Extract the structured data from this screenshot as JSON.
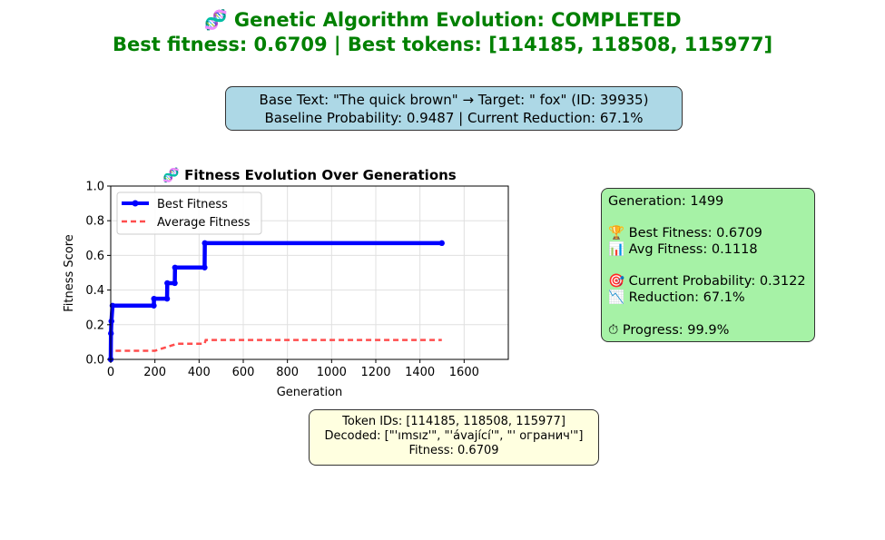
{
  "header": {
    "title_line1": "🧬 Genetic Algorithm Evolution: COMPLETED",
    "title_line2": "Best fitness: 0.6709 | Best tokens: [114185, 118508, 115977]"
  },
  "info_box": {
    "line1": "Base Text: \"The quick brown\"  →  Target: \" fox\" (ID: 39935)",
    "line2": "Baseline Probability: 0.9487  |  Current Reduction: 67.1%"
  },
  "stats_box": {
    "generation": "Generation: 1499",
    "best_fitness": "🏆 Best Fitness: 0.6709",
    "avg_fitness": "📊 Avg Fitness: 0.1118",
    "current_probability": "🎯 Current Probability: 0.3122",
    "reduction": "📉 Reduction: 67.1%",
    "progress": "⏱ Progress: 99.9%"
  },
  "token_box": {
    "token_ids": "Token IDs: [114185, 118508, 115977]",
    "decoded": "Decoded: [\"'ımsız'\", \"'ávající'\", \"' огранич'\"]",
    "fitness": "Fitness: 0.6709"
  },
  "colors": {
    "title": "#008000",
    "best_series": "#0000ff",
    "average_series": "#ff4d4d",
    "info_box": "#add8e6",
    "stats_box": "#a6f2a6",
    "token_box": "#ffffe0"
  },
  "chart_data": {
    "type": "line",
    "title": "🧬 Fitness Evolution Over Generations",
    "xlabel": "Generation",
    "ylabel": "Fitness Score",
    "xlim": [
      0,
      1800
    ],
    "ylim": [
      0,
      1
    ],
    "xticks": [
      0,
      200,
      400,
      600,
      800,
      1000,
      1200,
      1400,
      1600
    ],
    "yticks": [
      0.0,
      0.2,
      0.4,
      0.6,
      0.8,
      1.0
    ],
    "grid": true,
    "legend_position": "upper-left",
    "series": [
      {
        "name": "Best Fitness",
        "style": "solid-thick-with-markers",
        "points": [
          [
            0,
            0.0
          ],
          [
            1,
            0.15
          ],
          [
            3,
            0.22
          ],
          [
            8,
            0.31
          ],
          [
            195,
            0.31
          ],
          [
            196,
            0.35
          ],
          [
            255,
            0.35
          ],
          [
            256,
            0.44
          ],
          [
            290,
            0.44
          ],
          [
            291,
            0.53
          ],
          [
            425,
            0.53
          ],
          [
            426,
            0.6709
          ],
          [
            1499,
            0.6709
          ]
        ]
      },
      {
        "name": "Average Fitness",
        "style": "dashed",
        "points": [
          [
            0,
            0.02
          ],
          [
            5,
            0.05
          ],
          [
            200,
            0.05
          ],
          [
            250,
            0.07
          ],
          [
            300,
            0.09
          ],
          [
            425,
            0.09
          ],
          [
            430,
            0.1118
          ],
          [
            1499,
            0.1118
          ]
        ]
      }
    ]
  }
}
